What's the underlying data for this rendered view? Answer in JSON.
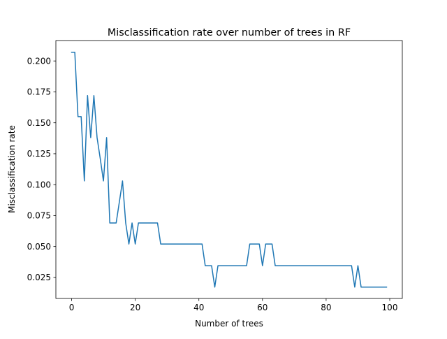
{
  "chart_data": {
    "type": "line",
    "title": "Misclassification rate over number of trees in RF",
    "xlabel": "Number of trees",
    "ylabel": "Misclassification rate",
    "xlim": [
      -4.95,
      103.95
    ],
    "ylim": [
      0.008,
      0.2165
    ],
    "xticks": [
      {
        "value": 0,
        "label": "0"
      },
      {
        "value": 20,
        "label": "20"
      },
      {
        "value": 40,
        "label": "40"
      },
      {
        "value": 60,
        "label": "60"
      },
      {
        "value": 80,
        "label": "80"
      },
      {
        "value": 100,
        "label": "100"
      }
    ],
    "yticks": [
      {
        "value": 0.025,
        "label": "0.025"
      },
      {
        "value": 0.05,
        "label": "0.050"
      },
      {
        "value": 0.075,
        "label": "0.075"
      },
      {
        "value": 0.1,
        "label": "0.100"
      },
      {
        "value": 0.125,
        "label": "0.125"
      },
      {
        "value": 0.15,
        "label": "0.150"
      },
      {
        "value": 0.175,
        "label": "0.175"
      },
      {
        "value": 0.2,
        "label": "0.200"
      }
    ],
    "grid": false,
    "series": [
      {
        "color": "#1f77b4",
        "x": [
          0,
          1,
          2,
          3,
          4,
          5,
          6,
          7,
          8,
          9,
          10,
          11,
          12,
          13,
          14,
          15,
          16,
          17,
          18,
          19,
          20,
          21,
          22,
          23,
          24,
          25,
          26,
          27,
          28,
          29,
          30,
          31,
          32,
          33,
          34,
          35,
          36,
          37,
          38,
          39,
          40,
          41,
          42,
          43,
          44,
          45,
          46,
          47,
          48,
          49,
          50,
          51,
          52,
          53,
          54,
          55,
          56,
          57,
          58,
          59,
          60,
          61,
          62,
          63,
          64,
          65,
          66,
          67,
          68,
          69,
          70,
          71,
          72,
          73,
          74,
          75,
          76,
          77,
          78,
          79,
          80,
          81,
          82,
          83,
          84,
          85,
          86,
          87,
          88,
          89,
          90,
          91,
          92,
          93,
          94,
          95,
          96,
          97,
          98,
          99
        ],
        "values": [
          0.207,
          0.207,
          0.155,
          0.155,
          0.103,
          0.172,
          0.138,
          0.172,
          0.138,
          0.121,
          0.103,
          0.138,
          0.069,
          0.069,
          0.069,
          0.086,
          0.103,
          0.069,
          0.052,
          0.069,
          0.052,
          0.069,
          0.069,
          0.069,
          0.069,
          0.069,
          0.069,
          0.069,
          0.052,
          0.052,
          0.052,
          0.052,
          0.052,
          0.052,
          0.052,
          0.052,
          0.052,
          0.052,
          0.052,
          0.052,
          0.052,
          0.052,
          0.0345,
          0.0345,
          0.0345,
          0.0172,
          0.0345,
          0.0345,
          0.0345,
          0.0345,
          0.0345,
          0.0345,
          0.0345,
          0.0345,
          0.0345,
          0.0345,
          0.052,
          0.052,
          0.052,
          0.052,
          0.0345,
          0.052,
          0.052,
          0.052,
          0.0345,
          0.0345,
          0.0345,
          0.0345,
          0.0345,
          0.0345,
          0.0345,
          0.0345,
          0.0345,
          0.0345,
          0.0345,
          0.0345,
          0.0345,
          0.0345,
          0.0345,
          0.0345,
          0.0345,
          0.0345,
          0.0345,
          0.0345,
          0.0345,
          0.0345,
          0.0345,
          0.0345,
          0.0345,
          0.0172,
          0.0345,
          0.0172,
          0.0172,
          0.0172,
          0.0172,
          0.0172,
          0.0172,
          0.0172,
          0.0172,
          0.0172
        ]
      }
    ]
  }
}
